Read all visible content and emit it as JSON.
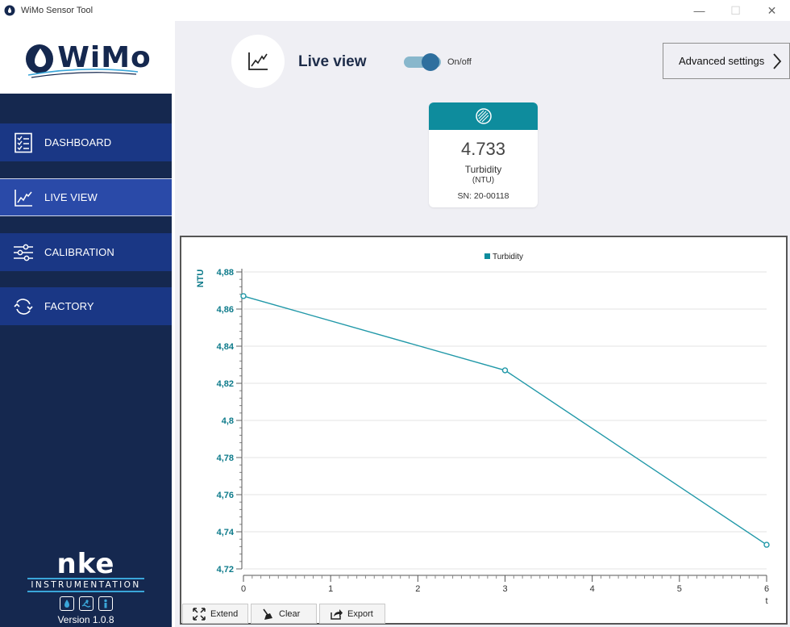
{
  "window": {
    "title": "WiMo Sensor Tool",
    "controls": [
      "—",
      "☐",
      "✕"
    ]
  },
  "logo": {
    "text": "WiMo"
  },
  "sidebar": {
    "items": [
      {
        "label": "DASHBOARD",
        "icon": "checklist-icon",
        "active": false
      },
      {
        "label": "LIVE VIEW",
        "icon": "chart-line-icon",
        "active": true
      },
      {
        "label": "CALIBRATION",
        "icon": "sliders-icon",
        "active": false
      },
      {
        "label": "FACTORY",
        "icon": "refresh-icon",
        "active": false
      }
    ],
    "brand": {
      "name": "nke",
      "subtitle": "INSTRUMENTATION"
    },
    "version": "Version 1.0.8"
  },
  "header": {
    "title": "Live view",
    "toggle_label": "On/off",
    "toggle_on": true,
    "advanced_button": "Advanced settings"
  },
  "sensor_card": {
    "value": "4.733",
    "name": "Turbidity",
    "unit": "(NTU)",
    "serial": "SN: 20-00118",
    "header_color": "#0e8c9d"
  },
  "chart_buttons": {
    "extend": "Extend",
    "clear": "Clear",
    "export": "Export"
  },
  "colors": {
    "sidebar_bg": "#15284f",
    "nav_bg": "#1a3785",
    "accent_teal": "#0e8c9d",
    "series_line": "#2098a8",
    "axis_label": "#0c7a8a"
  },
  "chart_data": {
    "type": "line",
    "title": "",
    "legend": [
      "Turbidity"
    ],
    "legend_position": "top-center",
    "xlabel": "t",
    "ylabel": "NTU",
    "xlim": [
      0,
      6
    ],
    "ylim": [
      4.72,
      4.88
    ],
    "x_ticks": [
      "0",
      "1",
      "2",
      "3",
      "4",
      "5",
      "6"
    ],
    "y_ticks": [
      "4,72",
      "4,74",
      "4,76",
      "4,78",
      "4,8",
      "4,82",
      "4,84",
      "4,86",
      "4,88"
    ],
    "grid": true,
    "series": [
      {
        "name": "Turbidity",
        "x": [
          0,
          3,
          6
        ],
        "y": [
          4.867,
          4.827,
          4.733
        ]
      }
    ]
  }
}
